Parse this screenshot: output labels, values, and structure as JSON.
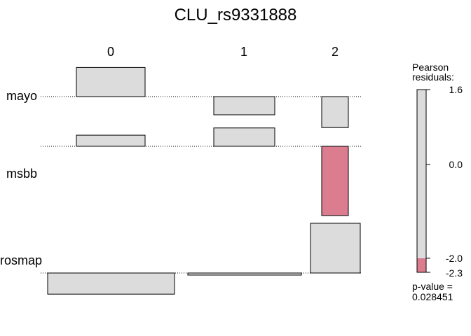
{
  "chart_data": {
    "type": "association",
    "title": "CLU_rs9331888",
    "columns": [
      "0",
      "1",
      "2"
    ],
    "rows": [
      "mayo",
      "msbb",
      "rosmap"
    ],
    "cells": [
      {
        "row": "mayo",
        "col": "0",
        "residual": 1.6
      },
      {
        "row": "mayo",
        "col": "1",
        "residual": -1.0
      },
      {
        "row": "mayo",
        "col": "2",
        "residual": -1.7
      },
      {
        "row": "msbb",
        "col": "0",
        "residual": 0.37
      },
      {
        "row": "msbb",
        "col": "1",
        "residual": 0.61
      },
      {
        "row": "msbb",
        "col": "2",
        "residual": -2.3
      },
      {
        "row": "rosmap",
        "col": "0",
        "residual": -0.57
      },
      {
        "row": "rosmap",
        "col": "1",
        "residual": -0.03
      },
      {
        "row": "rosmap",
        "col": "2",
        "residual": 1.34
      }
    ],
    "legend": {
      "title": "Pearson\nresiduals:",
      "ticks": [
        "1.6",
        "0.0",
        "-2.0",
        "-2.3"
      ],
      "range": [
        -2.3,
        1.6
      ],
      "threshold": -2.0,
      "pvalue_label": "p-value =",
      "pvalue": "0.028451"
    },
    "colors": {
      "positive_fill": "#dcdcdc",
      "negative_fill": "#dc7d8f",
      "stroke": "#000000"
    }
  }
}
